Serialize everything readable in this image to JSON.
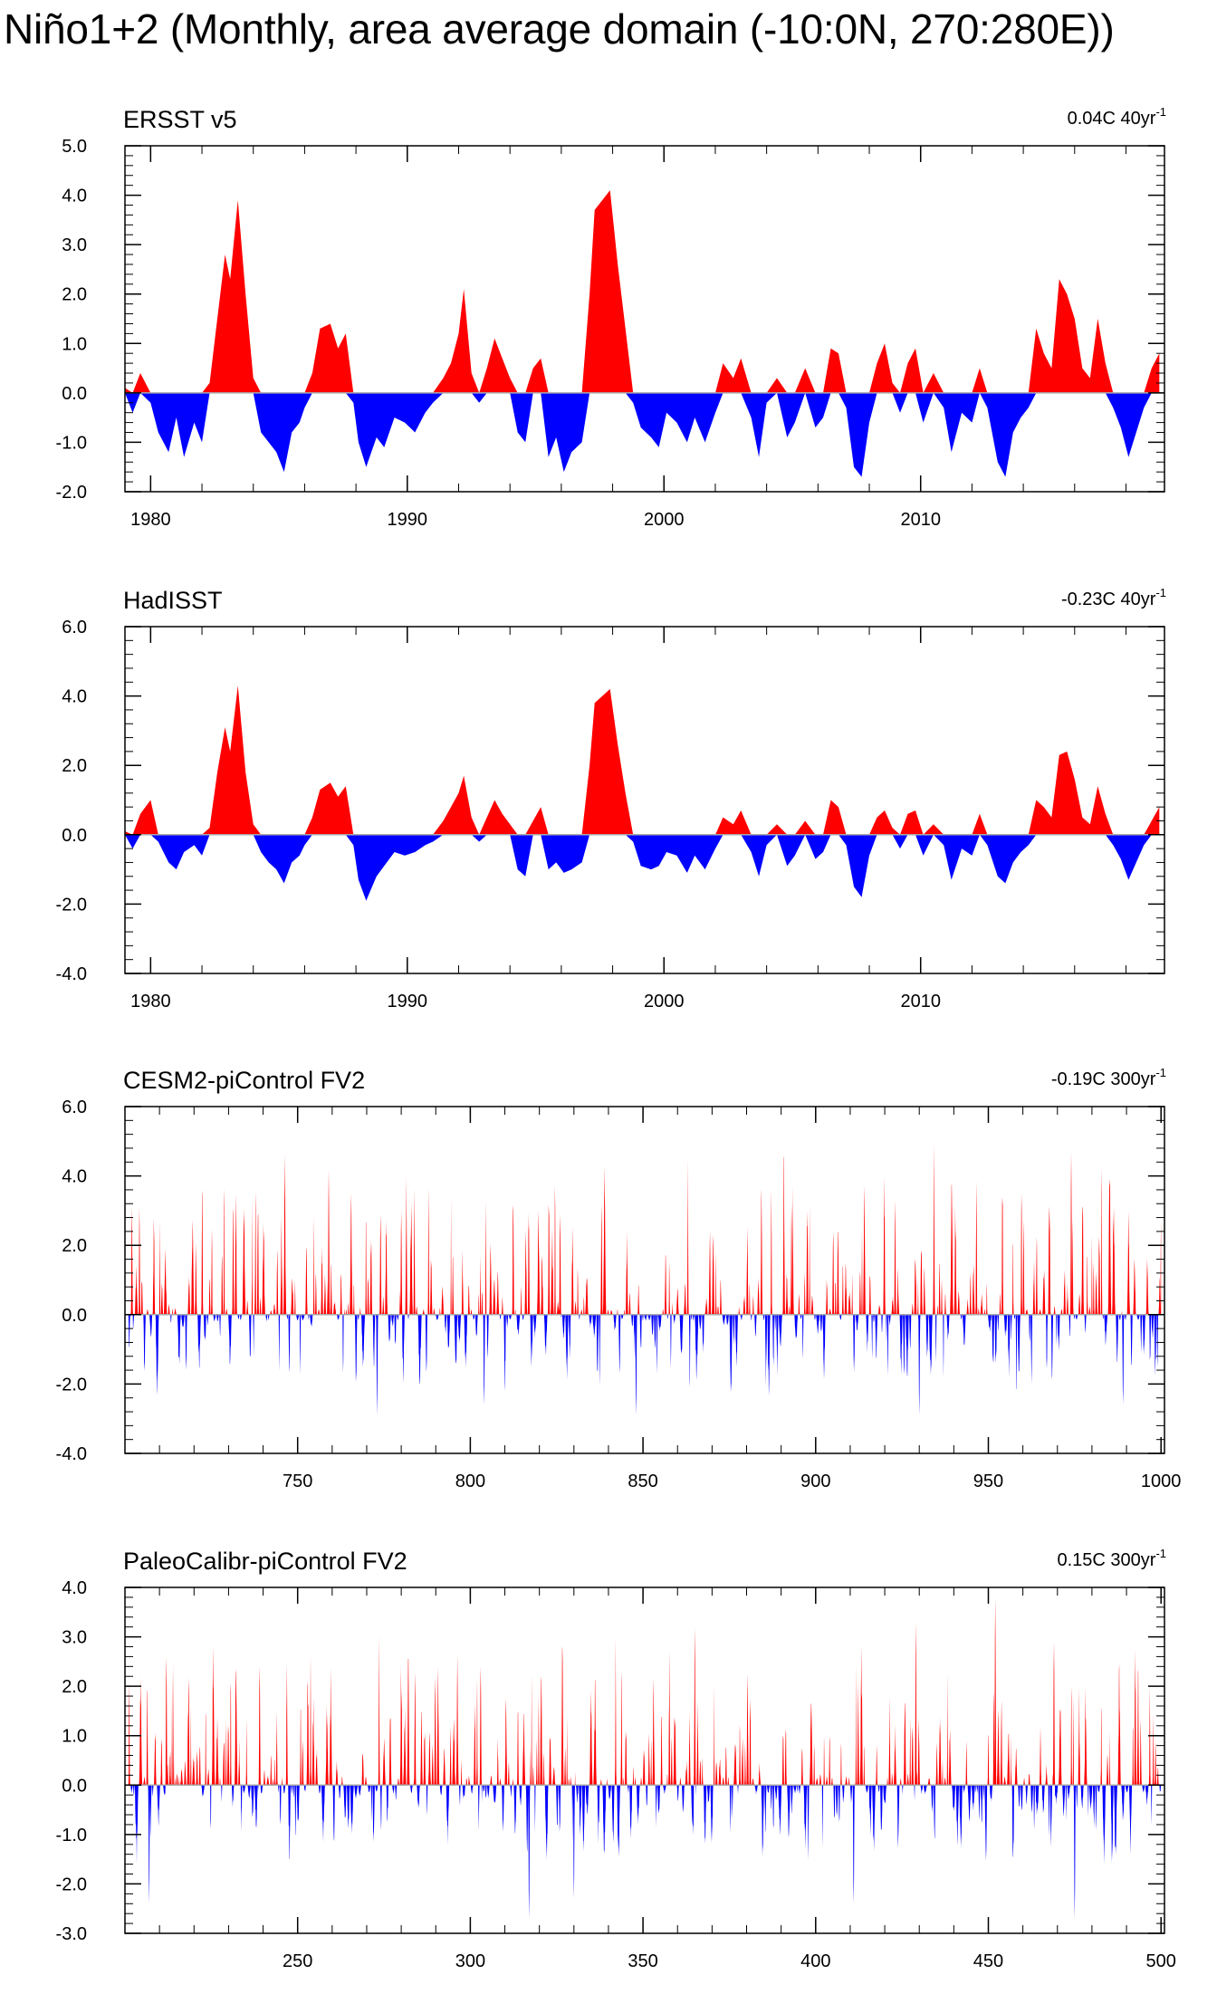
{
  "title": "Niño1+2 (Monthly, area average domain (-10:0N, 270:280E))",
  "colors": {
    "positive": "#ff0000",
    "negative": "#0000ff",
    "axis": "#000000",
    "zero_line": "#aaaaaa"
  },
  "chart_data": [
    {
      "type": "area",
      "title": "ERSST v5",
      "trend_label": "0.04C 40yr",
      "trend_sup": "-1",
      "xlim": [
        1979,
        2019.5
      ],
      "ylim": [
        -2.0,
        5.0
      ],
      "yticks": [
        "-2.0",
        "-1.0",
        "0.0",
        "1.0",
        "2.0",
        "3.0",
        "4.0",
        "5.0"
      ],
      "xticks": [
        "1980",
        "1990",
        "2000",
        "2010"
      ],
      "x": [
        1979.0,
        1979.3,
        1979.6,
        1980.0,
        1980.3,
        1980.7,
        1981.0,
        1981.3,
        1981.7,
        1982.0,
        1982.3,
        1982.6,
        1982.9,
        1983.1,
        1983.4,
        1983.7,
        1984.0,
        1984.3,
        1984.6,
        1984.9,
        1985.2,
        1985.5,
        1985.8,
        1986.0,
        1986.3,
        1986.6,
        1987.0,
        1987.3,
        1987.6,
        1987.9,
        1988.1,
        1988.4,
        1988.8,
        1989.1,
        1989.5,
        1989.9,
        1990.3,
        1990.7,
        1991.0,
        1991.4,
        1991.7,
        1992.0,
        1992.2,
        1992.5,
        1992.8,
        1993.1,
        1993.4,
        1993.7,
        1994.0,
        1994.3,
        1994.6,
        1994.9,
        1995.2,
        1995.5,
        1995.8,
        1996.1,
        1996.4,
        1996.8,
        1997.1,
        1997.3,
        1997.6,
        1997.9,
        1998.2,
        1998.5,
        1998.8,
        1999.1,
        1999.5,
        1999.8,
        2000.1,
        2000.5,
        2000.9,
        2001.2,
        2001.6,
        2002.0,
        2002.3,
        2002.7,
        2003.0,
        2003.4,
        2003.7,
        2004.0,
        2004.4,
        2004.8,
        2005.1,
        2005.5,
        2005.9,
        2006.2,
        2006.5,
        2006.8,
        2007.1,
        2007.4,
        2007.7,
        2008.0,
        2008.3,
        2008.6,
        2008.9,
        2009.2,
        2009.5,
        2009.8,
        2010.1,
        2010.5,
        2010.9,
        2011.2,
        2011.6,
        2012.0,
        2012.3,
        2012.6,
        2013.0,
        2013.3,
        2013.6,
        2013.9,
        2014.2,
        2014.5,
        2014.8,
        2015.1,
        2015.4,
        2015.7,
        2016.0,
        2016.3,
        2016.6,
        2016.9,
        2017.2,
        2017.5,
        2017.8,
        2018.1,
        2018.4,
        2018.7,
        2019.0,
        2019.3
      ],
      "values": [
        0.1,
        -0.4,
        0.4,
        -0.2,
        -0.8,
        -1.2,
        -0.5,
        -1.3,
        -0.6,
        -1.0,
        0.2,
        1.5,
        2.8,
        2.3,
        3.9,
        2.0,
        0.3,
        -0.8,
        -1.0,
        -1.2,
        -1.6,
        -0.8,
        -0.6,
        -0.3,
        0.4,
        1.3,
        1.4,
        0.9,
        1.2,
        -0.2,
        -1.0,
        -1.5,
        -0.9,
        -1.1,
        -0.5,
        -0.6,
        -0.8,
        -0.4,
        -0.2,
        0.3,
        0.6,
        1.2,
        2.1,
        0.4,
        -0.2,
        0.5,
        1.1,
        0.7,
        0.3,
        -0.8,
        -1.0,
        0.5,
        0.7,
        -1.3,
        -0.9,
        -1.6,
        -1.2,
        -1.0,
        2.0,
        3.7,
        3.9,
        4.1,
        2.6,
        1.3,
        -0.2,
        -0.7,
        -0.9,
        -1.1,
        -0.4,
        -0.6,
        -1.0,
        -0.5,
        -1.0,
        -0.4,
        0.6,
        0.3,
        0.7,
        -0.5,
        -1.3,
        -0.2,
        0.3,
        -0.9,
        -0.6,
        0.5,
        -0.7,
        -0.5,
        0.9,
        0.8,
        -0.3,
        -1.5,
        -1.7,
        -0.6,
        0.6,
        1.0,
        0.2,
        -0.4,
        0.6,
        0.9,
        -0.6,
        0.4,
        -0.3,
        -1.2,
        -0.4,
        -0.6,
        0.5,
        -0.3,
        -1.4,
        -1.7,
        -0.8,
        -0.5,
        -0.3,
        1.3,
        0.8,
        0.5,
        2.3,
        2.0,
        1.5,
        0.5,
        0.3,
        1.5,
        0.6,
        -0.3,
        -0.7,
        -1.3,
        -0.8,
        -0.3,
        0.5,
        0.8
      ]
    },
    {
      "type": "area",
      "title": "HadISST",
      "trend_label": "-0.23C 40yr",
      "trend_sup": "-1",
      "xlim": [
        1979,
        2019.5
      ],
      "ylim": [
        -4.0,
        6.0
      ],
      "yticks": [
        "-4.0",
        "-2.0",
        "0.0",
        "2.0",
        "4.0",
        "6.0"
      ],
      "xticks": [
        "1980",
        "1990",
        "2000",
        "2010"
      ],
      "x": [
        1979.0,
        1979.3,
        1979.6,
        1980.0,
        1980.3,
        1980.7,
        1981.0,
        1981.3,
        1981.7,
        1982.0,
        1982.3,
        1982.6,
        1982.9,
        1983.1,
        1983.4,
        1983.7,
        1984.0,
        1984.3,
        1984.6,
        1984.9,
        1985.2,
        1985.5,
        1985.8,
        1986.0,
        1986.3,
        1986.6,
        1987.0,
        1987.3,
        1987.6,
        1987.9,
        1988.1,
        1988.4,
        1988.8,
        1989.1,
        1989.5,
        1989.9,
        1990.3,
        1990.7,
        1991.0,
        1991.4,
        1991.7,
        1992.0,
        1992.2,
        1992.5,
        1992.8,
        1993.1,
        1993.4,
        1993.7,
        1994.0,
        1994.3,
        1994.6,
        1994.9,
        1995.2,
        1995.5,
        1995.8,
        1996.1,
        1996.4,
        1996.8,
        1997.1,
        1997.3,
        1997.6,
        1997.9,
        1998.2,
        1998.5,
        1998.8,
        1999.1,
        1999.5,
        1999.8,
        2000.1,
        2000.5,
        2000.9,
        2001.2,
        2001.6,
        2002.0,
        2002.3,
        2002.7,
        2003.0,
        2003.4,
        2003.7,
        2004.0,
        2004.4,
        2004.8,
        2005.1,
        2005.5,
        2005.9,
        2006.2,
        2006.5,
        2006.8,
        2007.1,
        2007.4,
        2007.7,
        2008.0,
        2008.3,
        2008.6,
        2008.9,
        2009.2,
        2009.5,
        2009.8,
        2010.1,
        2010.5,
        2010.9,
        2011.2,
        2011.6,
        2012.0,
        2012.3,
        2012.6,
        2013.0,
        2013.3,
        2013.6,
        2013.9,
        2014.2,
        2014.5,
        2014.8,
        2015.1,
        2015.4,
        2015.7,
        2016.0,
        2016.3,
        2016.6,
        2016.9,
        2017.2,
        2017.5,
        2017.8,
        2018.1,
        2018.4,
        2018.7,
        2019.0,
        2019.3
      ],
      "values": [
        0.1,
        -0.4,
        0.6,
        1.0,
        -0.2,
        -0.8,
        -1.0,
        -0.5,
        -0.3,
        -0.6,
        0.2,
        1.8,
        3.1,
        2.4,
        4.3,
        1.8,
        0.3,
        -0.5,
        -0.8,
        -1.0,
        -1.4,
        -0.8,
        -0.6,
        -0.3,
        0.5,
        1.3,
        1.5,
        1.1,
        1.4,
        -0.3,
        -1.3,
        -1.9,
        -1.2,
        -0.9,
        -0.5,
        -0.6,
        -0.5,
        -0.3,
        -0.2,
        0.4,
        0.8,
        1.2,
        1.7,
        0.5,
        -0.2,
        0.5,
        1.0,
        0.6,
        0.3,
        -1.0,
        -1.2,
        0.4,
        0.8,
        -1.0,
        -0.8,
        -1.1,
        -1.0,
        -0.8,
        2.0,
        3.8,
        4.0,
        4.2,
        2.6,
        1.2,
        -0.2,
        -0.9,
        -1.0,
        -0.9,
        -0.5,
        -0.6,
        -1.1,
        -0.6,
        -1.0,
        -0.4,
        0.5,
        0.3,
        0.7,
        -0.5,
        -1.2,
        -0.3,
        0.3,
        -0.9,
        -0.6,
        0.4,
        -0.7,
        -0.5,
        1.0,
        0.8,
        -0.3,
        -1.5,
        -1.8,
        -0.6,
        0.5,
        0.7,
        0.2,
        -0.4,
        0.6,
        0.7,
        -0.6,
        0.3,
        -0.3,
        -1.3,
        -0.4,
        -0.6,
        0.6,
        -0.3,
        -1.2,
        -1.4,
        -0.8,
        -0.5,
        -0.3,
        1.0,
        0.8,
        0.5,
        2.3,
        2.4,
        1.6,
        0.5,
        0.3,
        1.4,
        0.6,
        -0.3,
        -0.7,
        -1.3,
        -0.8,
        -0.3,
        0.4,
        0.8
      ]
    },
    {
      "type": "area",
      "title": "CESM2-piControl FV2",
      "trend_label": "-0.19C 300yr",
      "trend_sup": "-1",
      "xlim": [
        700,
        1001
      ],
      "ylim": [
        -4.0,
        6.0
      ],
      "yticks": [
        "-4.0",
        "-2.0",
        "0.0",
        "2.0",
        "4.0",
        "6.0"
      ],
      "xticks": [
        "750",
        "800",
        "850",
        "900",
        "950",
        "1000"
      ],
      "events": {
        "start": 701,
        "end": 1000,
        "seed": 7,
        "pos_scale": 1.35,
        "neg_scale": 0.85,
        "pos_max": 3.1,
        "neg_max": 2.3
      },
      "peaks": [
        [
          702,
          3.1
        ],
        [
          759,
          4.2
        ],
        [
          774,
          2.9
        ],
        [
          780,
          3.0
        ],
        [
          826,
          2.9
        ],
        [
          838,
          3.2
        ],
        [
          893,
          3.2
        ],
        [
          923,
          3.3
        ],
        [
          974,
          4.7
        ],
        [
          1000,
          2.7
        ]
      ],
      "troughs": [
        [
          773,
          -2.9
        ],
        [
          804,
          -2.6
        ],
        [
          848,
          -2.9
        ],
        [
          930,
          -2.9
        ],
        [
          989,
          -2.6
        ]
      ]
    },
    {
      "type": "area",
      "title": "PaleoCalibr-piControl FV2",
      "trend_label": "0.15C 300yr",
      "trend_sup": "-1",
      "xlim": [
        200,
        501
      ],
      "ylim": [
        -3.0,
        4.0
      ],
      "yticks": [
        "-3.0",
        "-2.0",
        "-1.0",
        "0.0",
        "1.0",
        "2.0",
        "3.0",
        "4.0"
      ],
      "xticks": [
        "250",
        "300",
        "350",
        "400",
        "450",
        "500"
      ],
      "events": {
        "start": 201,
        "end": 500,
        "seed": 19,
        "pos_scale": 1.15,
        "neg_scale": 0.8,
        "pos_max": 2.4,
        "neg_max": 1.9
      },
      "peaks": [
        [
          212,
          2.6
        ],
        [
          239,
          2.4
        ],
        [
          284,
          2.3
        ],
        [
          303,
          2.4
        ],
        [
          365,
          3.2
        ],
        [
          429,
          3.3
        ],
        [
          452,
          3.8
        ],
        [
          469,
          2.9
        ]
      ],
      "troughs": [
        [
          207,
          -2.4
        ],
        [
          317,
          -2.7
        ],
        [
          330,
          -2.3
        ],
        [
          411,
          -2.4
        ],
        [
          475,
          -2.7
        ]
      ]
    }
  ]
}
